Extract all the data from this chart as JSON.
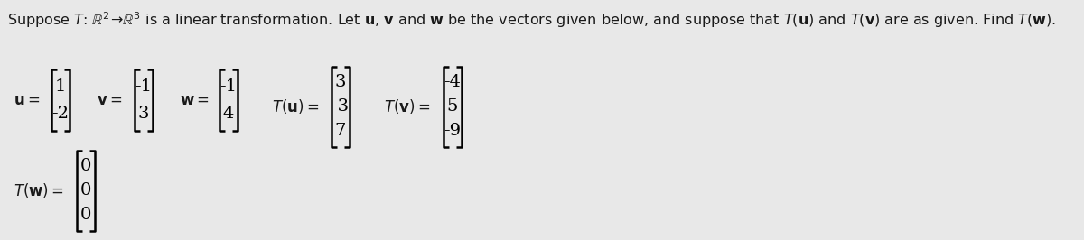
{
  "title": "Suppose $T$: $\\mathbb{R}^2\\!\\rightarrow\\!\\mathbb{R}^3$ is a linear transformation. Let $\\mathbf{u}$, $\\mathbf{v}$ and $\\mathbf{w}$ be the vectors given below, and suppose that $T(\\mathbf{u})$ and $T(\\mathbf{v})$ are as given. Find $T(\\mathbf{w})$.",
  "u": [
    "1",
    "-2"
  ],
  "v": [
    "-1",
    "3"
  ],
  "w": [
    "-1",
    "4"
  ],
  "Tu": [
    "3",
    "-3",
    "7"
  ],
  "Tv": [
    "-4",
    "5",
    "-9"
  ],
  "Tw": [
    "0",
    "0",
    "0"
  ],
  "bg_color": "#e8e8e8",
  "text_color": "#1a1a1a",
  "title_fontsize": 11.5,
  "math_fontsize": 14,
  "label_fontsize": 12
}
